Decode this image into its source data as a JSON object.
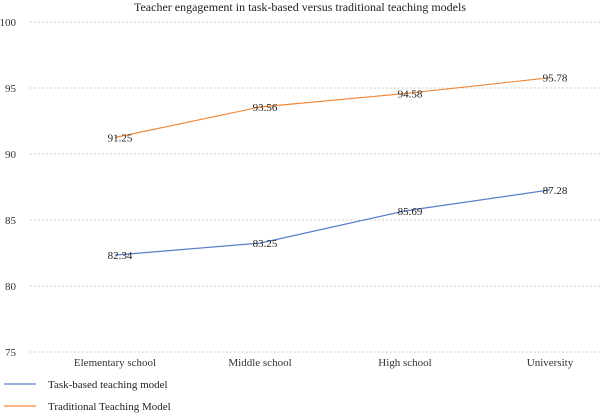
{
  "chart_data": {
    "type": "line",
    "title": "Teacher engagement in task-based versus traditional teaching models",
    "xlabel": "",
    "ylabel": "",
    "categories": [
      "Elementary school",
      "Middle school",
      "High school",
      "University"
    ],
    "ylim": [
      75,
      100
    ],
    "yticks": [
      75,
      80,
      85,
      90,
      95,
      100
    ],
    "grid": true,
    "legend_position": "bottom-left",
    "series": [
      {
        "name": "Task-based teaching model",
        "color": "#5b7fc7",
        "values": [
          82.34,
          83.25,
          85.69,
          87.28
        ],
        "labels": [
          "82.34",
          "83.25",
          "85.69",
          "87.28"
        ]
      },
      {
        "name": "Traditional Teaching Model",
        "color": "#f0893a",
        "values": [
          91.25,
          93.56,
          94.58,
          95.78
        ],
        "labels": [
          "91.25",
          "93.56",
          "94.58",
          "95.78"
        ]
      }
    ]
  }
}
